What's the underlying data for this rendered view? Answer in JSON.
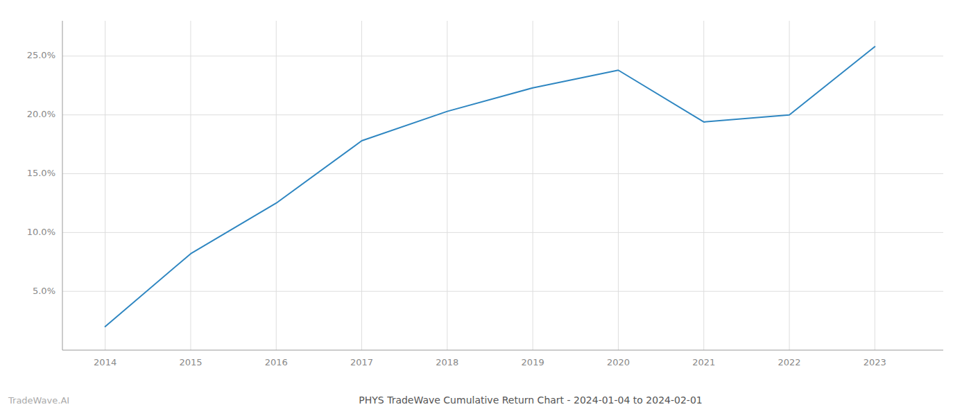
{
  "chart_data": {
    "type": "line",
    "title": "PHYS TradeWave Cumulative Return Chart - 2024-01-04 to 2024-02-01",
    "annotations": [
      "TradeWave.AI"
    ],
    "x": [
      2014,
      2015,
      2016,
      2017,
      2018,
      2019,
      2020,
      2021,
      2022,
      2023
    ],
    "values": [
      2.0,
      8.2,
      12.5,
      17.8,
      20.3,
      22.3,
      23.8,
      19.4,
      20.0,
      25.8
    ],
    "color": "#2e86c1",
    "xlim": [
      2013.5,
      2023.8
    ],
    "ylim": [
      0,
      28
    ],
    "xticks": [
      2014,
      2015,
      2016,
      2017,
      2018,
      2019,
      2020,
      2021,
      2022,
      2023
    ],
    "yticks": [
      {
        "value": 5.0,
        "label": "5.0%"
      },
      {
        "value": 10.0,
        "label": "10.0%"
      },
      {
        "value": 15.0,
        "label": "15.0%"
      },
      {
        "value": 20.0,
        "label": "20.0%"
      },
      {
        "value": 25.0,
        "label": "25.0%"
      }
    ],
    "grid": true
  }
}
